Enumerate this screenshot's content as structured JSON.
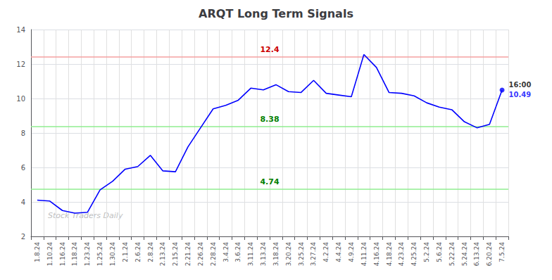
{
  "chart_data": {
    "type": "line",
    "title": "ARQT Long Term Signals",
    "categories": [
      "1.8.24",
      "1.10.24",
      "1.16.24",
      "1.18.24",
      "1.23.24",
      "1.25.24",
      "1.30.24",
      "2.1.24",
      "2.6.24",
      "2.8.24",
      "2.13.24",
      "2.15.24",
      "2.21.24",
      "2.26.24",
      "2.28.24",
      "3.4.24",
      "3.6.24",
      "3.11.24",
      "3.13.24",
      "3.18.24",
      "3.20.24",
      "3.25.24",
      "3.27.24",
      "4.2.24",
      "4.4.24",
      "4.9.24",
      "4.11.24",
      "4.16.24",
      "4.18.24",
      "4.23.24",
      "4.25.24",
      "5.2.24",
      "5.6.24",
      "5.22.24",
      "5.24.24",
      "6.13.24",
      "6.20.24",
      "7.5.24"
    ],
    "values": [
      4.1,
      4.05,
      3.5,
      3.35,
      3.4,
      4.7,
      5.2,
      5.9,
      6.05,
      6.7,
      5.8,
      5.75,
      7.2,
      8.3,
      9.4,
      9.6,
      9.9,
      10.6,
      10.5,
      10.8,
      10.4,
      10.35,
      11.05,
      10.3,
      10.2,
      10.1,
      12.55,
      11.8,
      10.35,
      10.3,
      10.15,
      9.75,
      9.5,
      9.35,
      8.65,
      8.3,
      8.5,
      10.49
    ],
    "color": "blue",
    "ylim": [
      2,
      14
    ],
    "yticks": [
      2,
      4,
      6,
      8,
      10,
      12,
      14
    ],
    "grid": true,
    "hlines": [
      {
        "value": 12.4,
        "color": "#f4a0a0",
        "label_color": "#cc0000"
      },
      {
        "value": 8.38,
        "color": "#90ee90",
        "label_color": "#008000"
      },
      {
        "value": 4.74,
        "color": "#90ee90",
        "label_color": "#008000"
      }
    ],
    "end_labels": [
      {
        "text": "16:00",
        "color": "black"
      },
      {
        "text": "10.49",
        "color": "blue"
      }
    ],
    "watermark": "Stock Traders Daily"
  }
}
